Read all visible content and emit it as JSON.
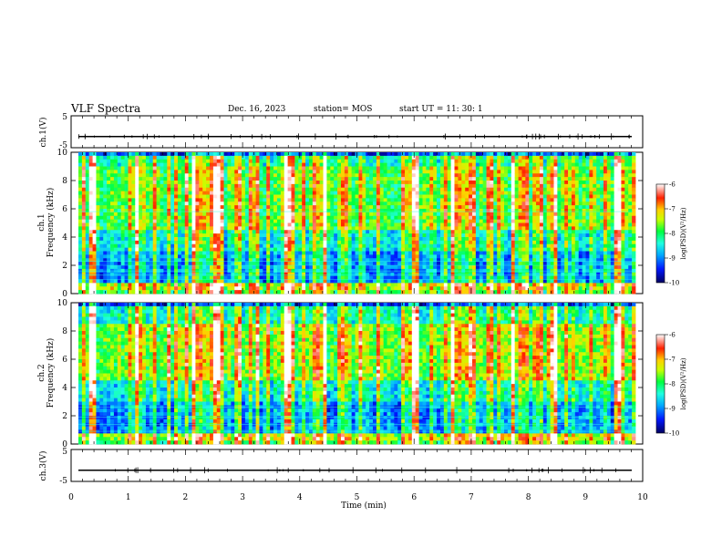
{
  "header": {
    "title": "VLF Spectra",
    "date": "Dec. 16, 2023",
    "station": "station= MOS",
    "start_ut": "start  UT =   11: 30: 1"
  },
  "chart_data": [
    {
      "type": "line",
      "panel": "ch1_waveform",
      "ylabel": "ch.1(V)",
      "ylim": [
        -5,
        5
      ],
      "yticks": [
        5,
        -5
      ],
      "baseline_value": -1.5,
      "xlim": [
        0,
        10
      ]
    },
    {
      "type": "heatmap",
      "panel": "ch1_spectrogram",
      "ylabel_line1": "ch.1",
      "ylabel_line2": "Frequency (kHz)",
      "ylim": [
        0,
        10
      ],
      "yticks": [
        0,
        2,
        4,
        6,
        8,
        10
      ],
      "xlim": [
        0,
        10
      ],
      "colorbar": {
        "ticks": [
          -6,
          -7,
          -8,
          -9,
          -10
        ],
        "label": "log(PSD)(V²/Hz)"
      }
    },
    {
      "type": "heatmap",
      "panel": "ch2_spectrogram",
      "ylabel_line1": "ch.2",
      "ylabel_line2": "Frequency (kHz)",
      "ylim": [
        0,
        10
      ],
      "yticks": [
        0,
        2,
        4,
        6,
        8,
        10
      ],
      "xlim": [
        0,
        10
      ],
      "colorbar": {
        "ticks": [
          -6,
          -7,
          -8,
          -9,
          -10
        ],
        "label": "log(PSD)(V²/Hz)"
      }
    },
    {
      "type": "line",
      "panel": "ch3_waveform",
      "ylabel": "ch.3(V)",
      "ylim": [
        -5,
        5
      ],
      "yticks": [
        5,
        -5
      ],
      "baseline_value": -1.5,
      "xlim": [
        0,
        10
      ],
      "xlabel": "Time  (min)",
      "xticks": [
        0,
        1,
        2,
        3,
        4,
        5,
        6,
        7,
        8,
        9,
        10
      ]
    }
  ],
  "colors": {
    "spectrum_scale": [
      "#00007a",
      "#0010ff",
      "#00a8ff",
      "#20ffe0",
      "#00ff40",
      "#c8ff00",
      "#ffd000",
      "#ff2000",
      "#ffffff"
    ]
  }
}
